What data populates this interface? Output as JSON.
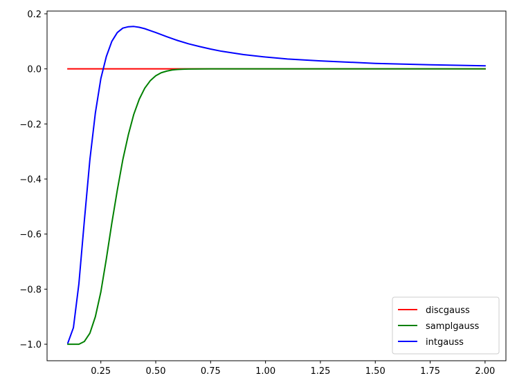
{
  "chart_data": {
    "type": "line",
    "title": "",
    "xlabel": "",
    "ylabel": "",
    "xlim": [
      0.005,
      2.095
    ],
    "ylim": [
      -1.06,
      0.21
    ],
    "x_ticks": [
      0.25,
      0.5,
      0.75,
      1.0,
      1.25,
      1.5,
      1.75,
      2.0
    ],
    "x_tick_labels": [
      "0.25",
      "0.50",
      "0.75",
      "1.00",
      "1.25",
      "1.50",
      "1.75",
      "2.00"
    ],
    "y_ticks": [
      -1.0,
      -0.8,
      -0.6,
      -0.4,
      -0.2,
      0.0,
      0.2
    ],
    "y_tick_labels": [
      "−1.0",
      "−0.8",
      "−0.6",
      "−0.4",
      "−0.2",
      "0.0",
      "0.2"
    ],
    "grid": false,
    "legend_position": "lower-right",
    "series": [
      {
        "name": "discgauss",
        "color": "#ff0000",
        "x": [
          0.1,
          0.2,
          0.3,
          0.5,
          0.75,
          1.0,
          1.25,
          1.5,
          1.75,
          2.0
        ],
        "y": [
          0.0,
          0.0,
          0.0,
          0.0,
          0.0,
          0.0,
          0.0,
          0.0,
          0.0,
          0.0
        ]
      },
      {
        "name": "samplgauss",
        "color": "#008000",
        "x": [
          0.1,
          0.125,
          0.15,
          0.175,
          0.2,
          0.225,
          0.25,
          0.275,
          0.3,
          0.325,
          0.35,
          0.375,
          0.4,
          0.425,
          0.45,
          0.475,
          0.5,
          0.525,
          0.55,
          0.575,
          0.6,
          0.625,
          0.65,
          0.7,
          0.75,
          0.8,
          0.9,
          1.0,
          1.25,
          1.5,
          1.75,
          2.0
        ],
        "y": [
          -1.0,
          -1.0,
          -1.0,
          -0.99,
          -0.96,
          -0.9,
          -0.81,
          -0.69,
          -0.56,
          -0.44,
          -0.33,
          -0.24,
          -0.165,
          -0.11,
          -0.07,
          -0.043,
          -0.025,
          -0.014,
          -0.008,
          -0.004,
          -0.002,
          -0.001,
          -0.0005,
          -0.0002,
          0.0,
          0.0,
          0.0,
          0.0,
          0.0,
          0.0,
          0.0,
          0.0
        ]
      },
      {
        "name": "intgauss",
        "color": "#0000ff",
        "x": [
          0.1,
          0.125,
          0.15,
          0.175,
          0.2,
          0.225,
          0.25,
          0.275,
          0.3,
          0.325,
          0.35,
          0.375,
          0.4,
          0.425,
          0.45,
          0.475,
          0.5,
          0.55,
          0.6,
          0.65,
          0.7,
          0.75,
          0.8,
          0.9,
          1.0,
          1.1,
          1.25,
          1.5,
          1.75,
          2.0
        ],
        "y": [
          -0.995,
          -0.94,
          -0.78,
          -0.55,
          -0.33,
          -0.16,
          -0.035,
          0.045,
          0.1,
          0.132,
          0.148,
          0.153,
          0.154,
          0.151,
          0.146,
          0.139,
          0.132,
          0.117,
          0.103,
          0.091,
          0.081,
          0.072,
          0.064,
          0.052,
          0.043,
          0.036,
          0.029,
          0.02,
          0.015,
          0.011
        ]
      }
    ]
  }
}
